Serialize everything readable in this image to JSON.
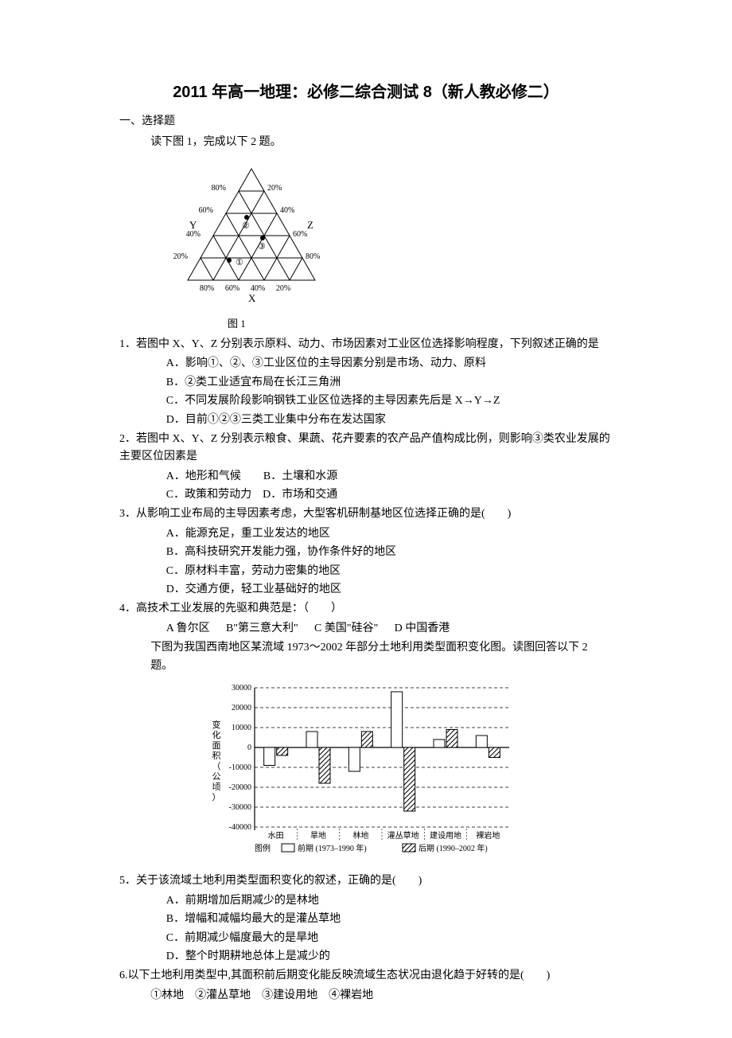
{
  "title": "2011 年高一地理：必修二综合测试 8（新人教必修二）",
  "section": "一、选择题",
  "intro1": "读下图 1，完成以下 2 题。",
  "fig1": {
    "caption": "图 1",
    "axis_labels": {
      "Y": "Y",
      "Z": "Z",
      "X": "X"
    },
    "pct_labels": [
      "20%",
      "40%",
      "60%",
      "80%"
    ],
    "point_labels": [
      "①",
      "②",
      "③"
    ],
    "stroke": "#000000",
    "fill": "#ffffff",
    "font_size": 11
  },
  "q1": {
    "num": "1．",
    "stem": "若图中 X、Y、Z 分别表示原料、动力、市场因素对工业区位选择影响程度，下列叙述正确的是",
    "A": "A．影响①、②、③工业区位的主导因素分别是市场、动力、原料",
    "B": "B．②类工业适宜布局在长江三角洲",
    "C": "C．不同发展阶段影响钢铁工业区位选择的主导因素先后是 X→Y→Z",
    "D": "D．目前①②③三类工业集中分布在发达国家"
  },
  "q2": {
    "num": "2．",
    "stem": "若图中 X、Y、Z 分别表示粮食、果蔬、花卉要素的农产品产值构成比例，则影响③类农业发展的主要区位因素是",
    "A": "A．地形和气候",
    "B": "B．土壤和水源",
    "C": "C．政策和劳动力",
    "D": "D．市场和交通"
  },
  "q3": {
    "num": "3．",
    "stem": "从影响工业布局的主导因素考虑，大型客机研制基地区位选择正确的是(　　)",
    "A": "A．能源充足，重工业发达的地区",
    "B": "B．高科技研究开发能力强，协作条件好的地区",
    "C": "C．原材料丰富，劳动力密集的地区",
    "D": "D．交通方便，轻工业基础好的地区"
  },
  "q4": {
    "num": "4．",
    "stem": "高技术工业发展的先驱和典范是：（　　）",
    "A": "A 鲁尔区",
    "B": "B\"第三意大利\"",
    "C": "C 美国\"硅谷\"",
    "D": "D 中国香港"
  },
  "intro2": "下图为我国西南地区某流域 1973～2002 年部分土地利用类型面积变化图。读图回答以下 2 题。",
  "fig2": {
    "y_label": "变化面积（公顷）",
    "y_ticks": [
      "30000",
      "20000",
      "10000",
      "0",
      "-10000",
      "-20000",
      "-30000",
      "-40000"
    ],
    "categories": [
      "水田",
      "旱地",
      "林地",
      "灌丛草地",
      "建设用地",
      "裸岩地"
    ],
    "legend_title": "图例",
    "legend_items": [
      "前期 (1973–1990 年)",
      "后期 (1990–2002 年)"
    ],
    "series_front": [
      -9000,
      8000,
      -12000,
      28000,
      4000,
      6000
    ],
    "series_back": [
      -4000,
      -18000,
      8000,
      -32000,
      9000,
      -5000
    ],
    "y_min": -40000,
    "y_max": 30000,
    "stroke": "#000000",
    "grid_dash": "4,3",
    "bar_fill_front": "#ffffff",
    "bar_fill_back_pattern": true,
    "font_size": 11
  },
  "q5": {
    "num": "5．",
    "stem": "关于该流域土地利用类型面积变化的叙述，正确的是(　　)",
    "A": "A．前期增加后期减少的是林地",
    "B": "B．增幅和减幅均最大的是灌丛草地",
    "C": "C．前期减少幅度最大的是旱地",
    "D": "D．整个时期耕地总体上是减少的"
  },
  "q6": {
    "num": "6.",
    "stem": "以下土地利用类型中,其面积前后期变化能反映流域生态状况由退化趋于好转的是(　　)",
    "line2": "①林地　②灌丛草地　③建设用地　④裸岩地"
  }
}
